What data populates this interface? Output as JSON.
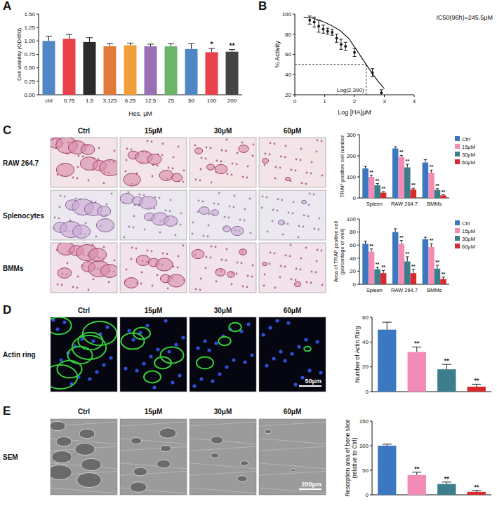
{
  "chart_data": [
    {
      "panel": "A",
      "type": "bar",
      "xlabel": "Hes. μM",
      "ylabel": "Cell viability (OD450)",
      "categories": [
        "ctrl",
        "0.75",
        "1.5",
        "3.125",
        "6.25",
        "12.5",
        "25",
        "50",
        "100",
        "200"
      ],
      "values": [
        1.0,
        1.04,
        0.98,
        0.9,
        0.92,
        0.9,
        0.9,
        0.85,
        0.79,
        0.8
      ],
      "errors": [
        0.09,
        0.08,
        0.08,
        0.05,
        0.04,
        0.04,
        0.05,
        0.1,
        0.07,
        0.04
      ],
      "colors": [
        "#4f86c6",
        "#e8414a",
        "#2b2b2b",
        "#e07b39",
        "#f0a03a",
        "#9b6fb6",
        "#6bb56b",
        "#4f86c6",
        "#e8414a",
        "#444444"
      ],
      "annotations": [
        null,
        null,
        null,
        null,
        null,
        null,
        null,
        null,
        "*",
        "**"
      ],
      "ylim": [
        0,
        1.5
      ],
      "yticks": [
        {
          "value": 0,
          "label": "0.00"
        },
        0.25,
        {
          "value": 0.5,
          "label": "0.50"
        },
        0.75,
        {
          "value": 1,
          "label": "1.00"
        },
        1.25,
        {
          "value": 1.5,
          "label": "1.50"
        }
      ]
    },
    {
      "panel": "B",
      "type": "scatter",
      "xlabel": "Log [HA]μM",
      "ylabel": "% Activity",
      "series": [
        {
          "type": "scatter",
          "marker": "circle",
          "color": "#1a1a1a",
          "x": [
            0.5,
            0.65,
            0.8,
            0.95,
            1.1,
            1.25,
            1.4,
            1.55,
            1.7,
            2.0,
            2.6,
            2.9
          ],
          "values": [
            94,
            92,
            88,
            85,
            83,
            82,
            76,
            70,
            68,
            62,
            42,
            22
          ],
          "errors": [
            4,
            5,
            6,
            4,
            3,
            3,
            4,
            5,
            4,
            4,
            4,
            3
          ]
        },
        {
          "type": "line",
          "color": "#1a1a1a",
          "x": [
            0.3,
            0.6,
            0.9,
            1.2,
            1.5,
            1.8,
            2.1,
            2.39,
            2.6,
            2.8,
            3.0
          ],
          "values": [
            97,
            96,
            93,
            89,
            84,
            76,
            63,
            50,
            41,
            33,
            26
          ]
        }
      ],
      "annotations": [
        "IC50(96h)=245.5μM",
        "Log(2.390)"
      ],
      "reference_x": 2.39,
      "reference_y": 50,
      "xlim": [
        0,
        4
      ],
      "xticks": [
        0,
        1,
        2,
        3,
        4
      ],
      "ylim": [
        20,
        100
      ],
      "yticks": [
        20,
        40,
        60,
        80,
        100
      ]
    },
    {
      "type": "bar",
      "ylabel": "TRAP-positive cell number",
      "legend": "right",
      "categories": [
        "Spleen",
        "RAW 264.7",
        "BMMs"
      ],
      "series": [
        {
          "name": "Ctrl",
          "color": "#3c78c0",
          "values": [
            140,
            235,
            168
          ],
          "errors": [
            9,
            8,
            14
          ],
          "annotations": [
            null,
            null,
            null
          ]
        },
        {
          "name": "15μM",
          "color": "#f28cb4",
          "values": [
            100,
            195,
            120
          ],
          "errors": [
            8,
            7,
            12
          ],
          "annotations": [
            "**",
            "**",
            "**"
          ]
        },
        {
          "name": "30μM",
          "color": "#3d7e8c",
          "values": [
            60,
            145,
            38
          ],
          "errors": [
            8,
            15,
            6
          ],
          "annotations": [
            "**",
            "**",
            "**"
          ]
        },
        {
          "name": "60μM",
          "color": "#d62a2e",
          "values": [
            25,
            40,
            12
          ],
          "errors": [
            5,
            6,
            3
          ],
          "annotations": [
            "**",
            "**",
            "**"
          ]
        }
      ],
      "ylim": [
        0,
        300
      ],
      "yticks": [
        0,
        100,
        200,
        300
      ]
    },
    {
      "type": "bar",
      "ylabel": "Area of TRAP positive cell (percentage of well)",
      "legend": "right",
      "categories": [
        "Spleen",
        "RAW 264.7",
        "BMMs"
      ],
      "series": [
        {
          "name": "Ctrl",
          "color": "#3c78c0",
          "values": [
            62,
            80,
            69
          ],
          "errors": [
            4,
            5,
            3
          ],
          "annotations": [
            null,
            null,
            null
          ]
        },
        {
          "name": "15μM",
          "color": "#f28cb4",
          "values": [
            50,
            62,
            57
          ],
          "errors": [
            4,
            5,
            5
          ],
          "annotations": [
            "**",
            "**",
            "**"
          ]
        },
        {
          "name": "30μM",
          "color": "#3d7e8c",
          "values": [
            23,
            35,
            24
          ],
          "errors": [
            3,
            7,
            5
          ],
          "annotations": [
            "**",
            "**",
            "**"
          ]
        },
        {
          "name": "60μM",
          "color": "#d62a2e",
          "values": [
            17,
            17,
            8
          ],
          "errors": [
            4,
            6,
            3
          ],
          "annotations": [
            "**",
            "**",
            "**"
          ]
        }
      ],
      "ylim": [
        0,
        100
      ],
      "yticks": [
        0,
        20,
        40,
        60,
        80,
        100
      ]
    },
    {
      "type": "bar",
      "ylabel": "Number of Actin Ring",
      "tick_labels": "y",
      "values": [
        50,
        32,
        18,
        4
      ],
      "errors": [
        6,
        4,
        4,
        2
      ],
      "colors": [
        "#3c78c0",
        "#f28cb4",
        "#3d7e8c",
        "#d62a2e"
      ],
      "annotations": [
        null,
        "**",
        "**",
        "**"
      ],
      "ylim": [
        0,
        60
      ],
      "yticks": [
        0,
        20,
        40,
        60
      ]
    },
    {
      "type": "bar",
      "ylabel": "Resorption area of bone slice (relative to Ctrl)",
      "tick_labels": "y",
      "values": [
        100,
        40,
        22,
        6
      ],
      "errors": [
        3,
        6,
        4,
        3
      ],
      "colors": [
        "#3c78c0",
        "#f28cb4",
        "#3d7e8c",
        "#d62a2e"
      ],
      "annotations": [
        null,
        "**",
        "**",
        "**"
      ],
      "ylim": [
        0,
        150
      ],
      "yticks": [
        0,
        50,
        100,
        150
      ]
    }
  ],
  "image_grids": [
    {
      "panel": "C",
      "columns": [
        "Ctrl",
        "15μM",
        "30μM",
        "60μM"
      ],
      "rows": [
        "RAW 264.7",
        "Splenocytes",
        "BMMs"
      ]
    },
    {
      "panel": "D",
      "columns": [
        "Ctrl",
        "15μM",
        "30μM",
        "60μM"
      ],
      "rows": [
        "Actin ring"
      ],
      "scale_bar": "50μm"
    },
    {
      "panel": "E",
      "columns": [
        "Ctrl",
        "15μM",
        "30μM",
        "60μM"
      ],
      "rows": [
        "SEM"
      ],
      "scale_bar": "200μm"
    }
  ]
}
